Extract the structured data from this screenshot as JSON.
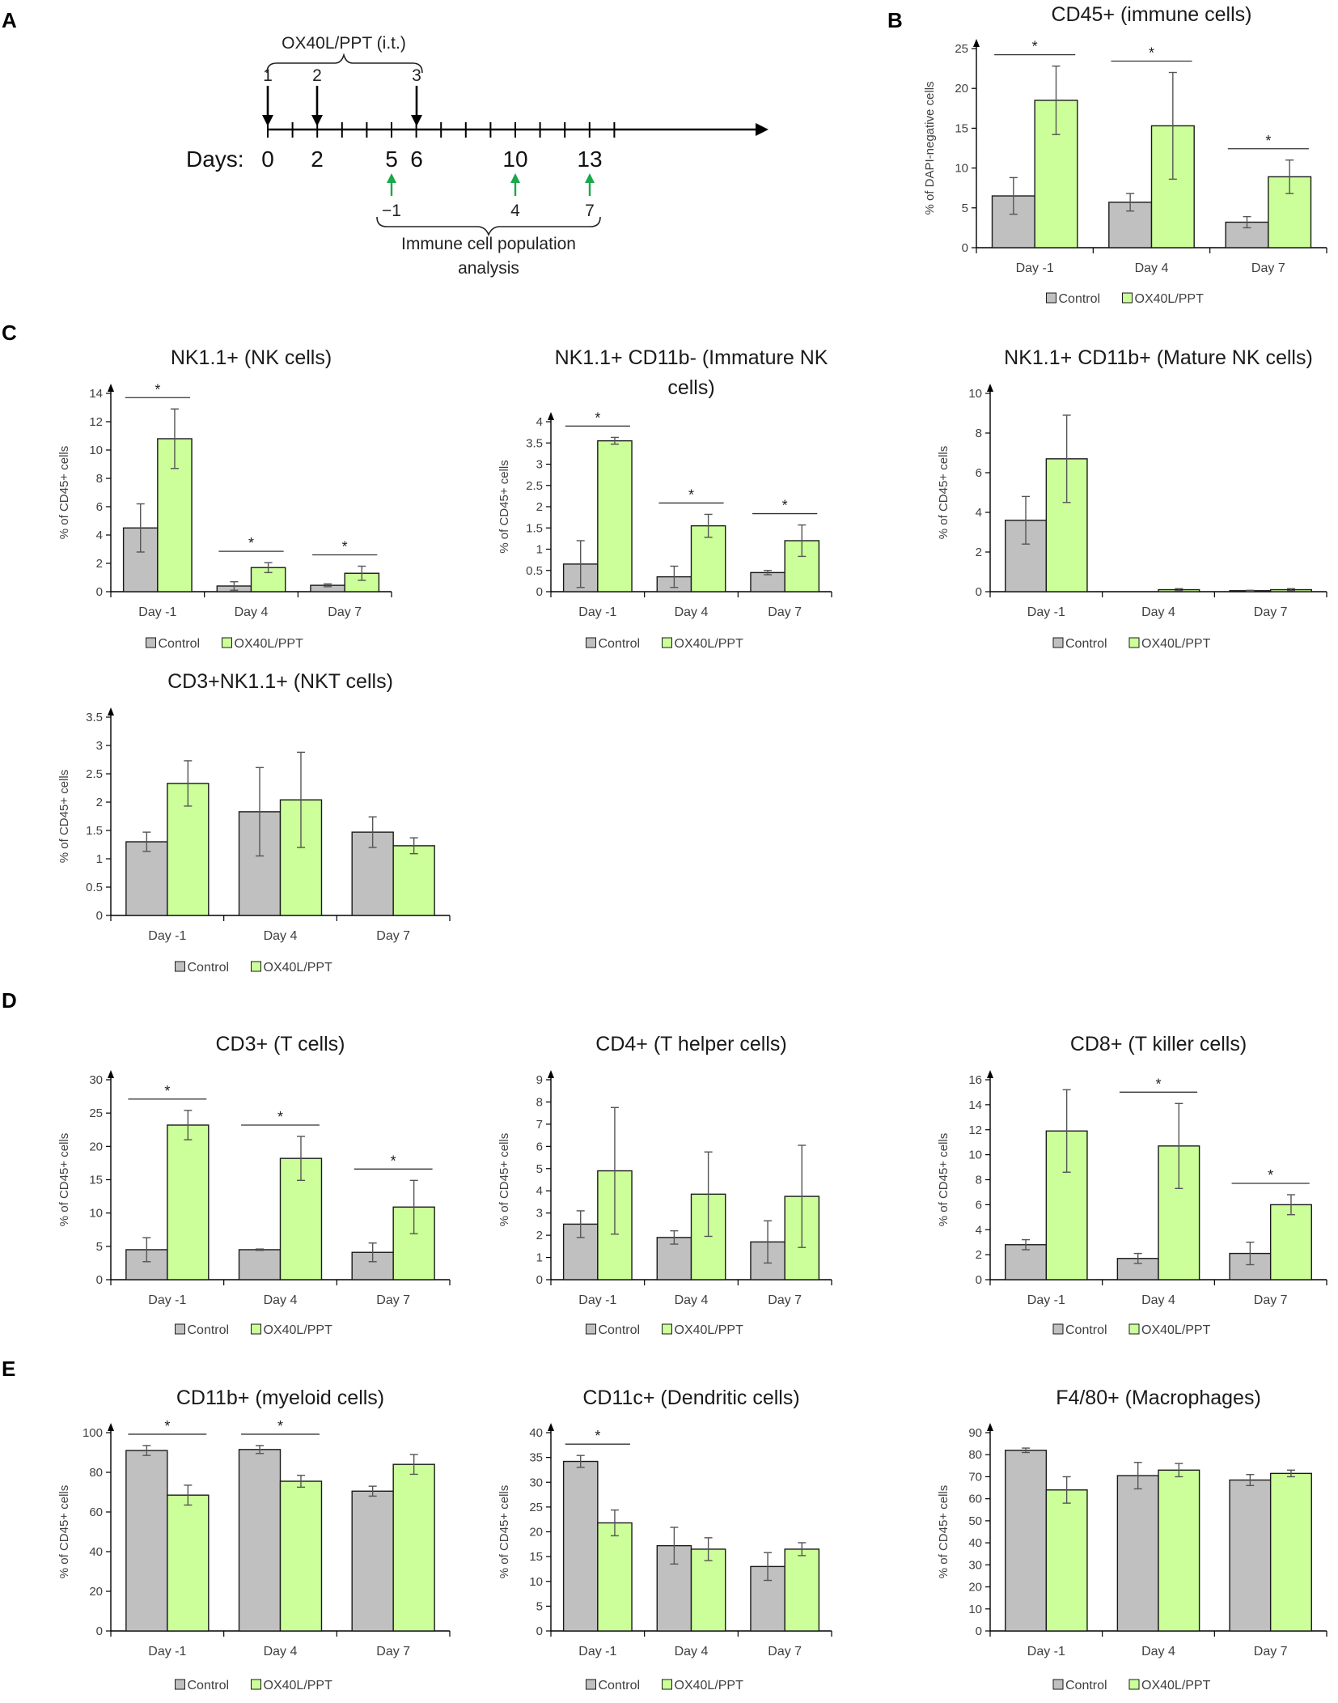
{
  "panel_labels": [
    "A",
    "B",
    "C",
    "D",
    "E"
  ],
  "colors": {
    "control": "#c0c0c0",
    "ox40l": "#ccff99",
    "bar_stroke": "#1a1a1a",
    "axis": "#000000",
    "arrow_black": "#000000",
    "arrow_green": "#1aa84a"
  },
  "timeline": {
    "treatment_label": "OX40L/PPT (i.t.)",
    "dose_numbers": [
      "1",
      "2",
      "3"
    ],
    "days_label": "Days:",
    "day_ticks": [
      "0",
      "2",
      "5",
      "6",
      "10",
      "13"
    ],
    "analysis_days": [
      "−1",
      "4",
      "7"
    ],
    "analysis_label_line1": "Immune cell population",
    "analysis_label_line2": "analysis"
  },
  "chart_data": [
    {
      "id": "B",
      "type": "bar",
      "title": "CD45+ (immune cells)",
      "ylabel": "% of DAPI-negative cells",
      "categories": [
        "Day -1",
        "Day 4",
        "Day 7"
      ],
      "ylim": [
        0,
        25
      ],
      "ytick_step": 5,
      "ytick_labels": [
        "0",
        "5",
        "10",
        "15",
        "20",
        "25"
      ],
      "series": [
        {
          "name": "Control",
          "values": [
            6.5,
            5.7,
            3.2
          ],
          "errors": [
            2.3,
            1.1,
            0.7
          ]
        },
        {
          "name": "OX40L/PPT",
          "values": [
            18.5,
            15.3,
            8.9
          ],
          "errors": [
            4.3,
            6.7,
            2.1
          ]
        }
      ],
      "significance": [
        true,
        true,
        true
      ],
      "sig_label": "*",
      "legend": [
        "Control",
        "OX40L/PPT"
      ]
    },
    {
      "id": "C1",
      "type": "bar",
      "title": "NK1.1+ (NK cells)",
      "ylabel": "% of CD45+ cells",
      "categories": [
        "Day -1",
        "Day 4",
        "Day 7"
      ],
      "ylim": [
        0,
        14
      ],
      "ytick_step": 2,
      "ytick_labels": [
        "0",
        "2",
        "4",
        "6",
        "8",
        "10",
        "12",
        "14"
      ],
      "series": [
        {
          "name": "Control",
          "values": [
            4.5,
            0.4,
            0.45
          ],
          "errors": [
            1.7,
            0.3,
            0.1
          ]
        },
        {
          "name": "OX40L/PPT",
          "values": [
            10.8,
            1.7,
            1.3
          ],
          "errors": [
            2.1,
            0.35,
            0.5
          ]
        }
      ],
      "significance": [
        true,
        true,
        true
      ],
      "sig_label": "*",
      "legend": [
        "Control",
        "OX40L/PPT"
      ]
    },
    {
      "id": "C2",
      "type": "bar",
      "title": "NK1.1+ CD11b- (Immature NK",
      "title_line2": "cells)",
      "ylabel": "% of CD45+ cells",
      "categories": [
        "Day -1",
        "Day 4",
        "Day 7"
      ],
      "ylim": [
        0,
        4
      ],
      "ytick_step": 0.5,
      "ytick_labels": [
        "0",
        "0.5",
        "1",
        "1.5",
        "2",
        "2.5",
        "3",
        "3.5",
        "4"
      ],
      "series": [
        {
          "name": "Control",
          "values": [
            0.65,
            0.35,
            0.45
          ],
          "errors": [
            0.55,
            0.25,
            0.05
          ]
        },
        {
          "name": "OX40L/PPT",
          "values": [
            3.55,
            1.55,
            1.2
          ],
          "errors": [
            0.08,
            0.27,
            0.37
          ]
        }
      ],
      "significance": [
        true,
        true,
        true
      ],
      "sig_label": "*",
      "legend": [
        "Control",
        "OX40L/PPT"
      ]
    },
    {
      "id": "C3",
      "type": "bar",
      "title": "NK1.1+ CD11b+ (Mature NK cells)",
      "ylabel": "% of CD45+ cells",
      "categories": [
        "Day -1",
        "Day 4",
        "Day 7"
      ],
      "ylim": [
        0,
        10
      ],
      "ytick_step": 2,
      "ytick_labels": [
        "0",
        "2",
        "4",
        "6",
        "8",
        "10"
      ],
      "series": [
        {
          "name": "Control",
          "values": [
            3.6,
            0.0,
            0.05
          ],
          "errors": [
            1.2,
            0.0,
            0.02
          ]
        },
        {
          "name": "OX40L/PPT",
          "values": [
            6.7,
            0.1,
            0.1
          ],
          "errors": [
            2.2,
            0.05,
            0.05
          ]
        }
      ],
      "significance": [
        false,
        false,
        false
      ],
      "sig_label": "*",
      "legend": [
        "Control",
        "OX40L/PPT"
      ]
    },
    {
      "id": "C4",
      "type": "bar",
      "title": "CD3+NK1.1+ (NKT cells)",
      "ylabel": "% of CD45+ cells",
      "categories": [
        "Day -1",
        "Day 4",
        "Day 7"
      ],
      "ylim": [
        0,
        3.5
      ],
      "ytick_step": 0.5,
      "ytick_labels": [
        "0",
        "0.5",
        "1",
        "1.5",
        "2",
        "2.5",
        "3",
        "3.5"
      ],
      "series": [
        {
          "name": "Control",
          "values": [
            1.3,
            1.83,
            1.47
          ],
          "errors": [
            0.17,
            0.78,
            0.27
          ]
        },
        {
          "name": "OX40L/PPT",
          "values": [
            2.33,
            2.04,
            1.23
          ],
          "errors": [
            0.4,
            0.84,
            0.14
          ]
        }
      ],
      "significance": [
        false,
        false,
        false
      ],
      "sig_label": "*",
      "legend": [
        "Control",
        "OX40L/PPT"
      ]
    },
    {
      "id": "D1",
      "type": "bar",
      "title": "CD3+ (T cells)",
      "ylabel": "% of CD45+ cells",
      "categories": [
        "Day -1",
        "Day 4",
        "Day 7"
      ],
      "ylim": [
        0,
        30
      ],
      "ytick_step": 5,
      "ytick_labels": [
        "0",
        "5",
        "10",
        "15",
        "20",
        "25",
        "30"
      ],
      "series": [
        {
          "name": "Control",
          "values": [
            4.5,
            4.5,
            4.1
          ],
          "errors": [
            1.8,
            0.1,
            1.4
          ]
        },
        {
          "name": "OX40L/PPT",
          "values": [
            23.2,
            18.2,
            10.9
          ],
          "errors": [
            2.2,
            3.3,
            4.0
          ]
        }
      ],
      "significance": [
        true,
        true,
        true
      ],
      "sig_label": "*",
      "legend": [
        "Control",
        "OX40L/PPT"
      ]
    },
    {
      "id": "D2",
      "type": "bar",
      "title": "CD4+ (T helper cells)",
      "ylabel": "% of CD45+ cells",
      "categories": [
        "Day -1",
        "Day 4",
        "Day 7"
      ],
      "ylim": [
        0,
        9
      ],
      "ytick_step": 1,
      "ytick_labels": [
        "0",
        "1",
        "2",
        "3",
        "4",
        "5",
        "6",
        "7",
        "8",
        "9"
      ],
      "series": [
        {
          "name": "Control",
          "values": [
            2.5,
            1.9,
            1.7
          ],
          "errors": [
            0.6,
            0.3,
            0.95
          ]
        },
        {
          "name": "OX40L/PPT",
          "values": [
            4.9,
            3.85,
            3.75
          ],
          "errors": [
            2.85,
            1.9,
            2.3
          ]
        }
      ],
      "significance": [
        false,
        false,
        false
      ],
      "sig_label": "*",
      "legend": [
        "Control",
        "OX40L/PPT"
      ]
    },
    {
      "id": "D3",
      "type": "bar",
      "title": "CD8+ (T killer cells)",
      "ylabel": "% of CD45+ cells",
      "categories": [
        "Day -1",
        "Day 4",
        "Day 7"
      ],
      "ylim": [
        0,
        16
      ],
      "ytick_step": 2,
      "ytick_labels": [
        "0",
        "2",
        "4",
        "6",
        "8",
        "10",
        "12",
        "14",
        "16"
      ],
      "series": [
        {
          "name": "Control",
          "values": [
            2.8,
            1.7,
            2.1
          ],
          "errors": [
            0.4,
            0.4,
            0.9
          ]
        },
        {
          "name": "OX40L/PPT",
          "values": [
            11.9,
            10.7,
            6.0
          ],
          "errors": [
            3.3,
            3.4,
            0.8
          ]
        }
      ],
      "significance": [
        false,
        true,
        true
      ],
      "sig_label": "*",
      "legend": [
        "Control",
        "OX40L/PPT"
      ]
    },
    {
      "id": "E1",
      "type": "bar",
      "title": "CD11b+ (myeloid cells)",
      "ylabel": "% of CD45+ cells",
      "categories": [
        "Day -1",
        "Day 4",
        "Day 7"
      ],
      "ylim": [
        0,
        100
      ],
      "ytick_step": 20,
      "ytick_labels": [
        "0",
        "20",
        "40",
        "60",
        "80",
        "100"
      ],
      "series": [
        {
          "name": "Control",
          "values": [
            91,
            91.5,
            70.5
          ],
          "errors": [
            2.5,
            2.0,
            2.5
          ]
        },
        {
          "name": "OX40L/PPT",
          "values": [
            68.5,
            75.5,
            84
          ],
          "errors": [
            5.0,
            3.0,
            5.0
          ]
        }
      ],
      "significance": [
        true,
        true,
        false
      ],
      "sig_label": "*",
      "legend": [
        "Control",
        "OX40L/PPT"
      ]
    },
    {
      "id": "E2",
      "type": "bar",
      "title": "CD11c+ (Dendritic cells)",
      "ylabel": "% of CD45+ cells",
      "categories": [
        "Day -1",
        "Day 4",
        "Day 7"
      ],
      "ylim": [
        0,
        40
      ],
      "ytick_step": 5,
      "ytick_labels": [
        "0",
        "5",
        "10",
        "15",
        "20",
        "25",
        "30",
        "35",
        "40"
      ],
      "series": [
        {
          "name": "Control",
          "values": [
            34.2,
            17.2,
            13.0
          ],
          "errors": [
            1.2,
            3.7,
            2.8
          ]
        },
        {
          "name": "OX40L/PPT",
          "values": [
            21.8,
            16.5,
            16.5
          ],
          "errors": [
            2.6,
            2.3,
            1.3
          ]
        }
      ],
      "significance": [
        true,
        false,
        false
      ],
      "sig_label": "*",
      "legend": [
        "Control",
        "OX40L/PPT"
      ]
    },
    {
      "id": "E3",
      "type": "bar",
      "title": "F4/80+ (Macrophages)",
      "ylabel": "% of CD45+ cells",
      "categories": [
        "Day -1",
        "Day 4",
        "Day 7"
      ],
      "ylim": [
        0,
        90
      ],
      "ytick_step": 10,
      "ytick_labels": [
        "0",
        "10",
        "20",
        "30",
        "40",
        "50",
        "60",
        "70",
        "80",
        "90"
      ],
      "series": [
        {
          "name": "Control",
          "values": [
            82,
            70.5,
            68.5
          ],
          "errors": [
            1.0,
            6.0,
            2.5
          ]
        },
        {
          "name": "OX40L/PPT",
          "values": [
            64,
            73,
            71.5
          ],
          "errors": [
            6.0,
            3.0,
            1.5
          ]
        }
      ],
      "significance": [
        false,
        false,
        false
      ],
      "sig_label": "*",
      "legend": [
        "Control",
        "OX40L/PPT"
      ]
    }
  ]
}
